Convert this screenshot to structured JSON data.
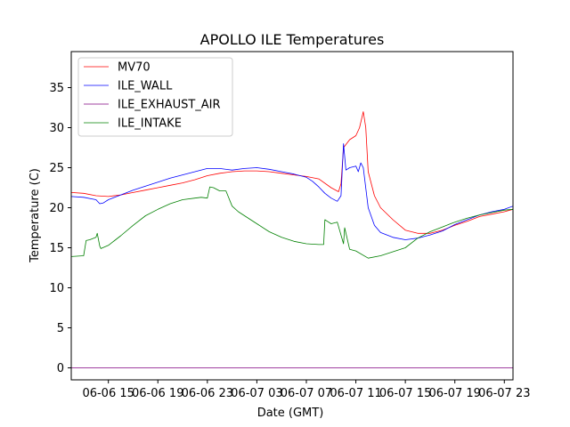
{
  "chart_data": {
    "type": "line",
    "title": "APOLLO ILE Temperatures",
    "xlabel": "Date (GMT)",
    "ylabel": "Temperature (C)",
    "xlim": [
      12.0,
      47.7
    ],
    "ylim": [
      -1.5,
      39.5
    ],
    "x_units": "hours since 06-06 00:00 GMT",
    "yticks": [
      0,
      5,
      10,
      15,
      20,
      25,
      30,
      35
    ],
    "xticks": [
      {
        "value": 15,
        "label": "06-06 15"
      },
      {
        "value": 19,
        "label": "06-06 19"
      },
      {
        "value": 23,
        "label": "06-06 23"
      },
      {
        "value": 27,
        "label": "06-07 03"
      },
      {
        "value": 31,
        "label": "06-07 07"
      },
      {
        "value": 35,
        "label": "06-07 11"
      },
      {
        "value": 39,
        "label": "06-07 15"
      },
      {
        "value": 43,
        "label": "06-07 19"
      },
      {
        "value": 47,
        "label": "06-07 23"
      }
    ],
    "legend_position": "top-left",
    "series": [
      {
        "name": "MV70",
        "color": "#ff0000",
        "x": [
          12.0,
          13.0,
          14.0,
          15.0,
          16.0,
          17.0,
          18.0,
          19.0,
          20.0,
          21.0,
          22.0,
          23.0,
          24.0,
          25.0,
          26.0,
          27.0,
          28.0,
          29.0,
          30.0,
          31.0,
          32.0,
          33.0,
          33.6,
          33.8,
          34.0,
          34.5,
          35.0,
          35.3,
          35.6,
          35.8,
          36.0,
          36.5,
          37.0,
          38.0,
          39.0,
          40.0,
          41.0,
          42.0,
          43.0,
          44.0,
          45.0,
          46.0,
          47.0,
          47.7
        ],
        "y": [
          21.9,
          21.8,
          21.5,
          21.4,
          21.6,
          21.9,
          22.2,
          22.5,
          22.8,
          23.1,
          23.5,
          24.0,
          24.3,
          24.5,
          24.6,
          24.6,
          24.5,
          24.3,
          24.1,
          23.9,
          23.6,
          22.5,
          22.0,
          23.0,
          27.5,
          28.5,
          29.0,
          30.0,
          32.0,
          30.0,
          24.5,
          21.5,
          20.0,
          18.5,
          17.2,
          16.8,
          16.8,
          17.2,
          17.8,
          18.3,
          18.9,
          19.2,
          19.5,
          19.8
        ]
      },
      {
        "name": "ILE_WALL",
        "color": "#0000ff",
        "x": [
          12.0,
          13.0,
          14.0,
          14.3,
          14.6,
          15.0,
          16.0,
          17.0,
          18.0,
          19.0,
          20.0,
          21.0,
          22.0,
          23.0,
          24.0,
          25.0,
          26.0,
          27.0,
          28.0,
          29.0,
          30.0,
          31.0,
          31.5,
          32.0,
          32.5,
          33.0,
          33.5,
          33.8,
          34.0,
          34.2,
          34.5,
          35.0,
          35.2,
          35.4,
          35.6,
          36.0,
          36.5,
          37.0,
          38.0,
          39.0,
          40.0,
          41.0,
          42.0,
          43.0,
          44.0,
          45.0,
          46.0,
          47.0,
          47.7
        ],
        "y": [
          21.4,
          21.3,
          21.0,
          20.5,
          20.6,
          21.0,
          21.6,
          22.2,
          22.7,
          23.2,
          23.7,
          24.1,
          24.5,
          24.9,
          24.9,
          24.7,
          24.9,
          25.0,
          24.8,
          24.5,
          24.2,
          23.8,
          23.3,
          22.6,
          21.8,
          21.2,
          20.8,
          21.5,
          28.0,
          24.7,
          25.0,
          25.2,
          24.5,
          25.6,
          25.0,
          20.0,
          17.8,
          16.9,
          16.3,
          16.0,
          16.2,
          16.6,
          17.1,
          17.9,
          18.5,
          19.1,
          19.5,
          19.8,
          20.2
        ]
      },
      {
        "name": "ILE_EXHAUST_AIR",
        "color": "#800080",
        "x": [
          12.0,
          47.7
        ],
        "y": [
          0.0,
          0.0
        ]
      },
      {
        "name": "ILE_INTAKE",
        "color": "#008000",
        "x": [
          12.0,
          13.0,
          13.2,
          13.5,
          14.0,
          14.1,
          14.3,
          14.4,
          15.0,
          16.0,
          17.0,
          18.0,
          19.0,
          20.0,
          21.0,
          22.0,
          22.5,
          23.0,
          23.2,
          23.5,
          24.0,
          24.5,
          25.0,
          25.5,
          26.0,
          27.0,
          28.0,
          29.0,
          30.0,
          31.0,
          32.0,
          32.4,
          32.5,
          32.7,
          33.0,
          33.5,
          34.0,
          34.1,
          34.5,
          35.0,
          36.0,
          37.0,
          38.0,
          39.0,
          40.0,
          41.0,
          42.0,
          43.0,
          44.0,
          45.0,
          46.0,
          47.0,
          47.7
        ],
        "y": [
          13.9,
          14.0,
          15.9,
          16.0,
          16.3,
          16.8,
          15.2,
          14.9,
          15.3,
          16.5,
          17.8,
          19.0,
          19.8,
          20.5,
          21.0,
          21.2,
          21.3,
          21.2,
          22.6,
          22.5,
          22.1,
          22.1,
          20.2,
          19.5,
          19.0,
          18.0,
          17.0,
          16.3,
          15.8,
          15.5,
          15.4,
          15.4,
          18.5,
          18.3,
          18.0,
          18.2,
          15.5,
          17.5,
          14.8,
          14.6,
          13.7,
          14.0,
          14.5,
          15.0,
          16.2,
          17.0,
          17.6,
          18.2,
          18.7,
          19.1,
          19.4,
          19.7,
          19.8
        ]
      }
    ]
  }
}
